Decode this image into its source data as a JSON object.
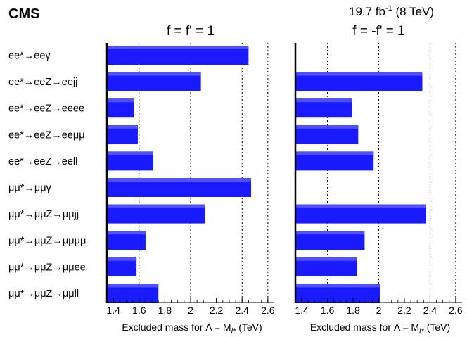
{
  "header": {
    "experiment": "CMS",
    "lumi_main": "19.7 fb",
    "lumi_exp": "-1",
    "lumi_tail": " (8 TeV)"
  },
  "chart_data": {
    "type": "bar",
    "orientation": "horizontal",
    "categories": [
      "ee*→eeγ",
      "ee*→eeZ→eejj",
      "ee*→eeZ→eeee",
      "ee*→eeZ→eeμμ",
      "ee*→eeZ→eell",
      "μμ*→μμγ",
      "μμ*→μμZ→μμjj",
      "μμ*→μμZ→μμμμ",
      "μμ*→μμZ→μμee",
      "μμ*→μμZ→μμll"
    ],
    "panels": [
      {
        "title": "f = f' = 1",
        "values": [
          2.45,
          2.08,
          1.56,
          1.59,
          1.71,
          2.47,
          2.11,
          1.65,
          1.58,
          1.75
        ]
      },
      {
        "title": "f = -f' = 1",
        "values": [
          null,
          2.34,
          1.79,
          1.84,
          1.96,
          null,
          2.37,
          1.89,
          1.83,
          2.01
        ]
      }
    ],
    "xlim": [
      1.35,
      2.65
    ],
    "xticks": [
      1.4,
      1.6,
      1.8,
      2.0,
      2.2,
      2.4,
      2.6
    ],
    "xticklabels": [
      "1.4",
      "1.6",
      "1.8",
      "2",
      "2.2",
      "2.4",
      "2.6"
    ],
    "gridlines": [
      1.6,
      2.0,
      2.4,
      2.6
    ],
    "xlabel_prefix": "Excluded mass for Λ = M",
    "xlabel_sub": "l*",
    "xlabel_suffix": " (TeV)",
    "colors": {
      "bar": "#1a1aff",
      "bar_highlight": "#5050ff",
      "axis": "#000000"
    }
  }
}
